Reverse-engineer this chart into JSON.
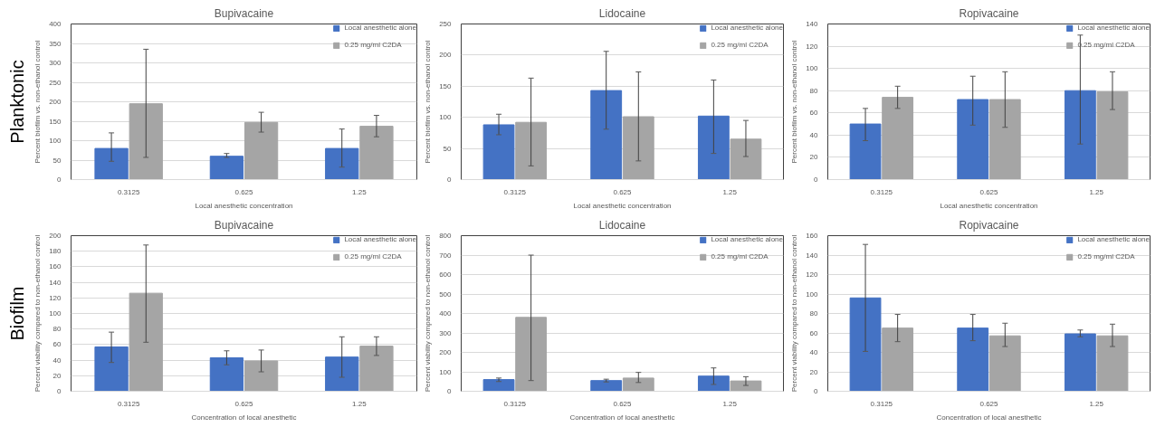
{
  "chart_data": [
    {
      "type": "bar",
      "title": "Bupivacaine",
      "annotations": [
        "Planktonic"
      ],
      "xlabel": "Local anesthetic concentration",
      "ylabel": "Percent biofilm vs. non-ethanol control",
      "categories": [
        "0.3125",
        "0.625",
        "1.25"
      ],
      "ylim": [
        0,
        400
      ],
      "yticks": [
        0,
        50,
        100,
        150,
        200,
        250,
        300,
        350,
        400
      ],
      "grid": "y",
      "legend": "top right",
      "series": [
        {
          "name": "Local anesthetic alone",
          "color": "#4472c4",
          "values": [
            80,
            60,
            80
          ],
          "errors": [
            [
              47,
              120
            ],
            [
              57,
              67
            ],
            [
              32,
              130
            ]
          ]
        },
        {
          "name": "0.25 mg/ml C2DA",
          "color": "#a5a5a5",
          "values": [
            195,
            147,
            137
          ],
          "errors": [
            [
              57,
              335
            ],
            [
              122,
              173
            ],
            [
              110,
              165
            ]
          ]
        }
      ]
    },
    {
      "type": "bar",
      "title": "Lidocaine",
      "xlabel": "Local anesthetic concentration",
      "ylabel": "Percent biofilm vs. non-ethanol control",
      "categories": [
        "0.3125",
        "0.625",
        "1.25"
      ],
      "ylim": [
        0,
        250
      ],
      "yticks": [
        0,
        50,
        100,
        150,
        200,
        250
      ],
      "grid": "y",
      "legend": "top right",
      "series": [
        {
          "name": "Local anesthetic alone",
          "color": "#4472c4",
          "values": [
            88,
            143,
            102
          ],
          "errors": [
            [
              72,
              105
            ],
            [
              81,
              206
            ],
            [
              42,
              160
            ]
          ]
        },
        {
          "name": "0.25 mg/ml C2DA",
          "color": "#a5a5a5",
          "values": [
            92,
            101,
            65
          ],
          "errors": [
            [
              22,
              163
            ],
            [
              30,
              173
            ],
            [
              37,
              95
            ]
          ]
        }
      ]
    },
    {
      "type": "bar",
      "title": "Ropivacaine",
      "xlabel": "Local anesthetic concentration",
      "ylabel": "Percent biofilm vs. non-ethanol control",
      "categories": [
        "0.3125",
        "0.625",
        "1.25"
      ],
      "ylim": [
        0,
        140
      ],
      "yticks": [
        0,
        20,
        40,
        60,
        80,
        100,
        120,
        140
      ],
      "grid": "y",
      "legend": "top right",
      "series": [
        {
          "name": "Local anesthetic alone",
          "color": "#4472c4",
          "values": [
            50,
            72,
            80
          ],
          "errors": [
            [
              35,
              64
            ],
            [
              49,
              93
            ],
            [
              32,
              130
            ]
          ]
        },
        {
          "name": "0.25 mg/ml C2DA",
          "color": "#a5a5a5",
          "values": [
            74,
            72,
            79
          ],
          "errors": [
            [
              64,
              84
            ],
            [
              47,
              97
            ],
            [
              63,
              97
            ]
          ]
        }
      ]
    },
    {
      "type": "bar",
      "title": "Bupivacaine",
      "annotations": [
        "Biofilm"
      ],
      "xlabel": "Concentration of local anesthetic",
      "ylabel": "Percent viability compared to non-ethanol control",
      "categories": [
        "0.3125",
        "0.625",
        "1.25"
      ],
      "ylim": [
        0,
        200
      ],
      "yticks": [
        0,
        20,
        40,
        60,
        80,
        100,
        120,
        140,
        160,
        180,
        200
      ],
      "grid": "y",
      "legend": "top right",
      "series": [
        {
          "name": "Local anesthetic alone",
          "color": "#4472c4",
          "values": [
            57,
            43,
            44
          ],
          "errors": [
            [
              37,
              76
            ],
            [
              34,
              52
            ],
            [
              18,
              70
            ]
          ]
        },
        {
          "name": "0.25 mg/ml C2DA",
          "color": "#a5a5a5",
          "values": [
            126,
            39,
            58
          ],
          "errors": [
            [
              63,
              188
            ],
            [
              25,
              53
            ],
            [
              46,
              70
            ]
          ]
        }
      ]
    },
    {
      "type": "bar",
      "title": "Lidocaine",
      "xlabel": "Concentration of local anesthetic",
      "ylabel": "Percent viability compared to non-ethanol control",
      "categories": [
        "0.3125",
        "0.625",
        "1.25"
      ],
      "ylim": [
        0,
        800
      ],
      "yticks": [
        0,
        100,
        200,
        300,
        400,
        500,
        600,
        700,
        800
      ],
      "grid": "y",
      "legend": "top right",
      "series": [
        {
          "name": "Local anesthetic alone",
          "color": "#4472c4",
          "values": [
            60,
            55,
            78
          ],
          "errors": [
            [
              50,
              68
            ],
            [
              48,
              62
            ],
            [
              35,
              120
            ]
          ]
        },
        {
          "name": "0.25 mg/ml C2DA",
          "color": "#a5a5a5",
          "values": [
            380,
            68,
            53
          ],
          "errors": [
            [
              55,
              700
            ],
            [
              45,
              97
            ],
            [
              30,
              75
            ]
          ]
        }
      ]
    },
    {
      "type": "bar",
      "title": "Ropivacaine",
      "xlabel": "Concentration of local anesthetic",
      "ylabel": "Percent viability compared to non-ethanol control",
      "categories": [
        "0.3125",
        "0.625",
        "1.25"
      ],
      "ylim": [
        0,
        160
      ],
      "yticks": [
        0,
        20,
        40,
        60,
        80,
        100,
        120,
        140,
        160
      ],
      "grid": "y",
      "legend": "top right",
      "series": [
        {
          "name": "Local anesthetic alone",
          "color": "#4472c4",
          "values": [
            96,
            65,
            59
          ],
          "errors": [
            [
              41,
              151
            ],
            [
              52,
              79
            ],
            [
              56,
              63
            ]
          ]
        },
        {
          "name": "0.25 mg/ml C2DA",
          "color": "#a5a5a5",
          "values": [
            65,
            57,
            57
          ],
          "errors": [
            [
              51,
              79
            ],
            [
              46,
              70
            ],
            [
              46,
              69
            ]
          ]
        }
      ]
    }
  ]
}
